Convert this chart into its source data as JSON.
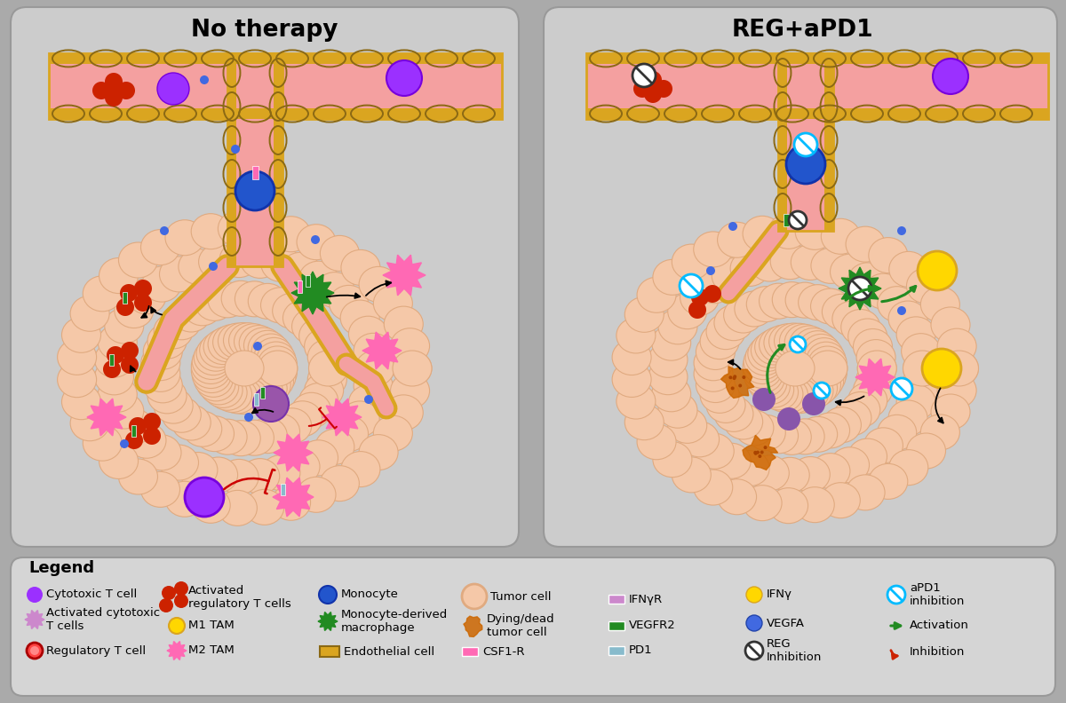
{
  "bg_color": "#aaaaaa",
  "panel_left_title": "No therapy",
  "panel_right_title": "REG+aPD1",
  "legend_title": "Legend",
  "vessel_color": "#F4A0A0",
  "vessel_border": "#DAA520",
  "tumor_cell_color": "#F5C8A8",
  "tumor_cell_border": "#E0AA80",
  "panel_color": "#cccccc",
  "legend_color": "#d5d5d5"
}
